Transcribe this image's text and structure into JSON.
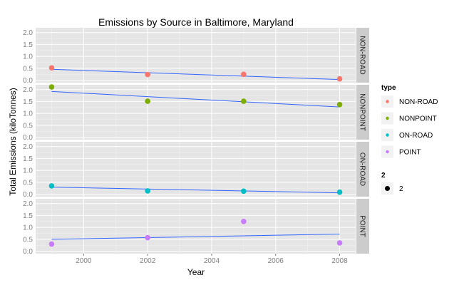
{
  "chart_data": {
    "type": "scatter",
    "title": "Emissions by Source in Baltimore, Maryland",
    "xlabel": "Year",
    "ylabel": "Total Emissions (kiloTonnes)",
    "xlim": [
      1998.5,
      2008.5
    ],
    "ylim": [
      -0.1,
      2.2
    ],
    "x_ticks": [
      2000,
      2002,
      2004,
      2006,
      2008
    ],
    "y_ticks": [
      "0.0",
      "0.5",
      "1.0",
      "1.5",
      "2.0"
    ],
    "grid": true,
    "facet_strip_position": "right",
    "legend_position": "right",
    "legend": {
      "title": "type",
      "size_title": "2",
      "size_label": "2"
    },
    "series": [
      {
        "name": "NON-ROAD",
        "color": "#F8766D",
        "x": [
          1999,
          2002,
          2005,
          2008
        ],
        "y": [
          0.52,
          0.24,
          0.25,
          0.06
        ],
        "trend": [
          0.46,
          0.03
        ]
      },
      {
        "name": "NONPOINT",
        "color": "#7CAE00",
        "x": [
          1999,
          2002,
          2005,
          2008
        ],
        "y": [
          2.11,
          1.51,
          1.51,
          1.37
        ],
        "trend": [
          1.92,
          1.27
        ]
      },
      {
        "name": "ON-ROAD",
        "color": "#00BFC4",
        "x": [
          1999,
          2002,
          2005,
          2008
        ],
        "y": [
          0.35,
          0.14,
          0.13,
          0.09
        ],
        "trend": [
          0.3,
          0.06
        ]
      },
      {
        "name": "POINT",
        "color": "#C77CFF",
        "x": [
          1999,
          2002,
          2005,
          2008
        ],
        "y": [
          0.3,
          0.57,
          1.25,
          0.35
        ],
        "trend": [
          0.5,
          0.72
        ]
      }
    ],
    "trend_color": "#3366FF"
  }
}
